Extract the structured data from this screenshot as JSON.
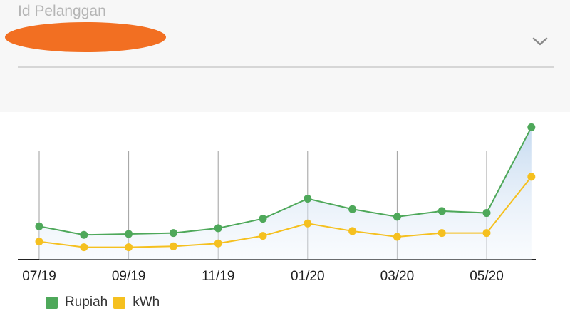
{
  "form": {
    "field_label": "Id Pelanggan"
  },
  "colors": {
    "rupiah": "#4ea85a",
    "kwh": "#f5c01f",
    "redaction": "#f26f22"
  },
  "icons": {
    "dropdown": "chevron-down-icon"
  },
  "chart_data": {
    "type": "line",
    "x": [
      "07/19",
      "08/19",
      "09/19",
      "10/19",
      "11/19",
      "12/19",
      "01/20",
      "02/20",
      "03/20",
      "04/20",
      "05/20",
      "06/20"
    ],
    "x_tick_labels": [
      "07/19",
      "09/19",
      "11/19",
      "01/20",
      "03/20",
      "05/20"
    ],
    "series": [
      {
        "name": "Rupiah",
        "values": [
          35,
          26,
          27,
          28,
          33,
          43,
          64,
          53,
          45,
          51,
          49,
          139
        ]
      },
      {
        "name": "kWh",
        "values": [
          19,
          13,
          13,
          14,
          17,
          25,
          38,
          30,
          24,
          28,
          28,
          87
        ]
      }
    ],
    "ylim": [
      0,
      155
    ],
    "grid": "vertical",
    "area_fill": true,
    "legend_position": "bottom-left"
  }
}
